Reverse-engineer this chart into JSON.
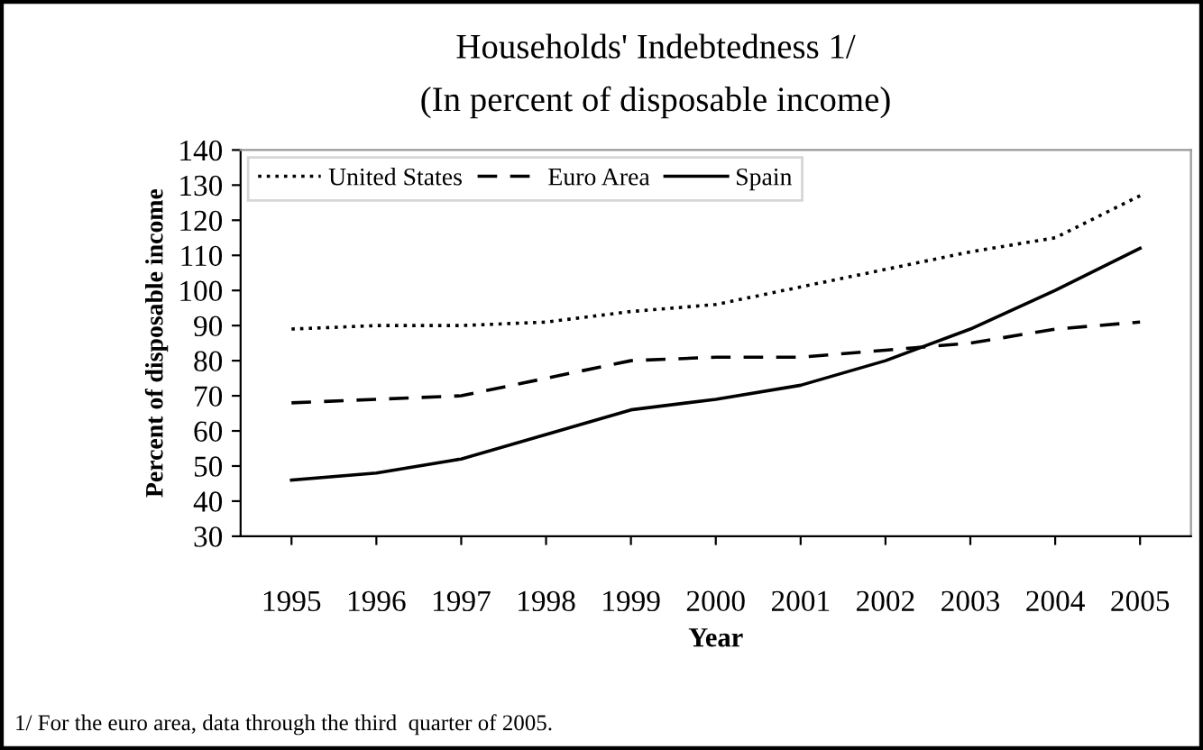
{
  "chart_data": {
    "type": "line",
    "title": "Households' Indebtedness 1/",
    "subtitle": "(In percent of disposable income)",
    "xlabel": "Year",
    "ylabel": "Percent of disposable income",
    "categories": [
      "1995",
      "1996",
      "1997",
      "1998",
      "1999",
      "2000",
      "2001",
      "2002",
      "2003",
      "2004",
      "2005"
    ],
    "series": [
      {
        "name": "United States",
        "color": "#000000",
        "line_style": "dotted",
        "values": [
          89,
          90,
          90,
          91,
          94,
          96,
          101,
          106,
          111,
          115,
          127
        ]
      },
      {
        "name": "Euro Area",
        "color": "#000000",
        "line_style": "dashed",
        "values": [
          68,
          69,
          70,
          75,
          80,
          81,
          81,
          83,
          85,
          89,
          91
        ]
      },
      {
        "name": "Spain",
        "color": "#000000",
        "line_style": "solid",
        "values": [
          46,
          48,
          52,
          59,
          66,
          69,
          73,
          80,
          89,
          100,
          112
        ]
      }
    ],
    "ylim": [
      30,
      140
    ],
    "yticks": [
      30,
      40,
      50,
      60,
      70,
      80,
      90,
      100,
      110,
      120,
      130,
      140
    ],
    "grid": false,
    "legend": "top left",
    "annotations": [
      "1/ For the euro area, data through the third  quarter of 2005."
    ]
  }
}
